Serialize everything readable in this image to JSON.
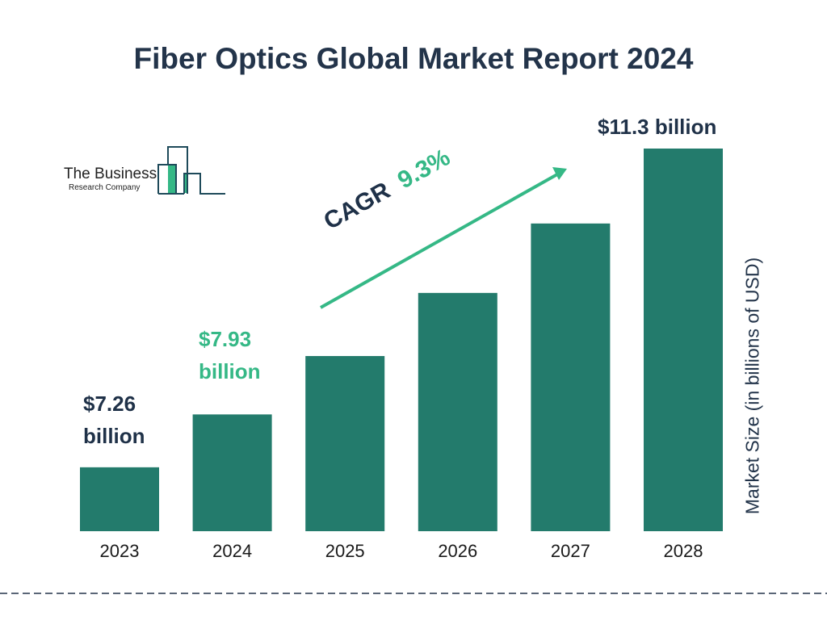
{
  "title": "Fiber Optics Global Market Report 2024",
  "logo": {
    "line1": "The Business",
    "line2": "Research Company"
  },
  "cagr": {
    "label": "CAGR",
    "value": "9.3%"
  },
  "colors": {
    "bar": "#237b6c",
    "accent": "#35b886",
    "text": "#1f3148"
  },
  "chart_data": {
    "type": "bar",
    "title": "Fiber Optics Global Market Report 2024",
    "categories": [
      "2023",
      "2024",
      "2025",
      "2026",
      "2027",
      "2028"
    ],
    "values": [
      7.26,
      7.93,
      8.67,
      9.47,
      10.35,
      11.3
    ],
    "data_labels": [
      {
        "category": "2023",
        "line1": "$7.26",
        "line2": "billion"
      },
      {
        "category": "2024",
        "line1": "$7.93",
        "line2": "billion"
      },
      {
        "category": "2028",
        "text": "$11.3 billion"
      }
    ],
    "xlabel": "",
    "ylabel": "Market Size (in billions of USD)",
    "ylim": [
      6.45,
      11.3
    ],
    "grid": false
  }
}
